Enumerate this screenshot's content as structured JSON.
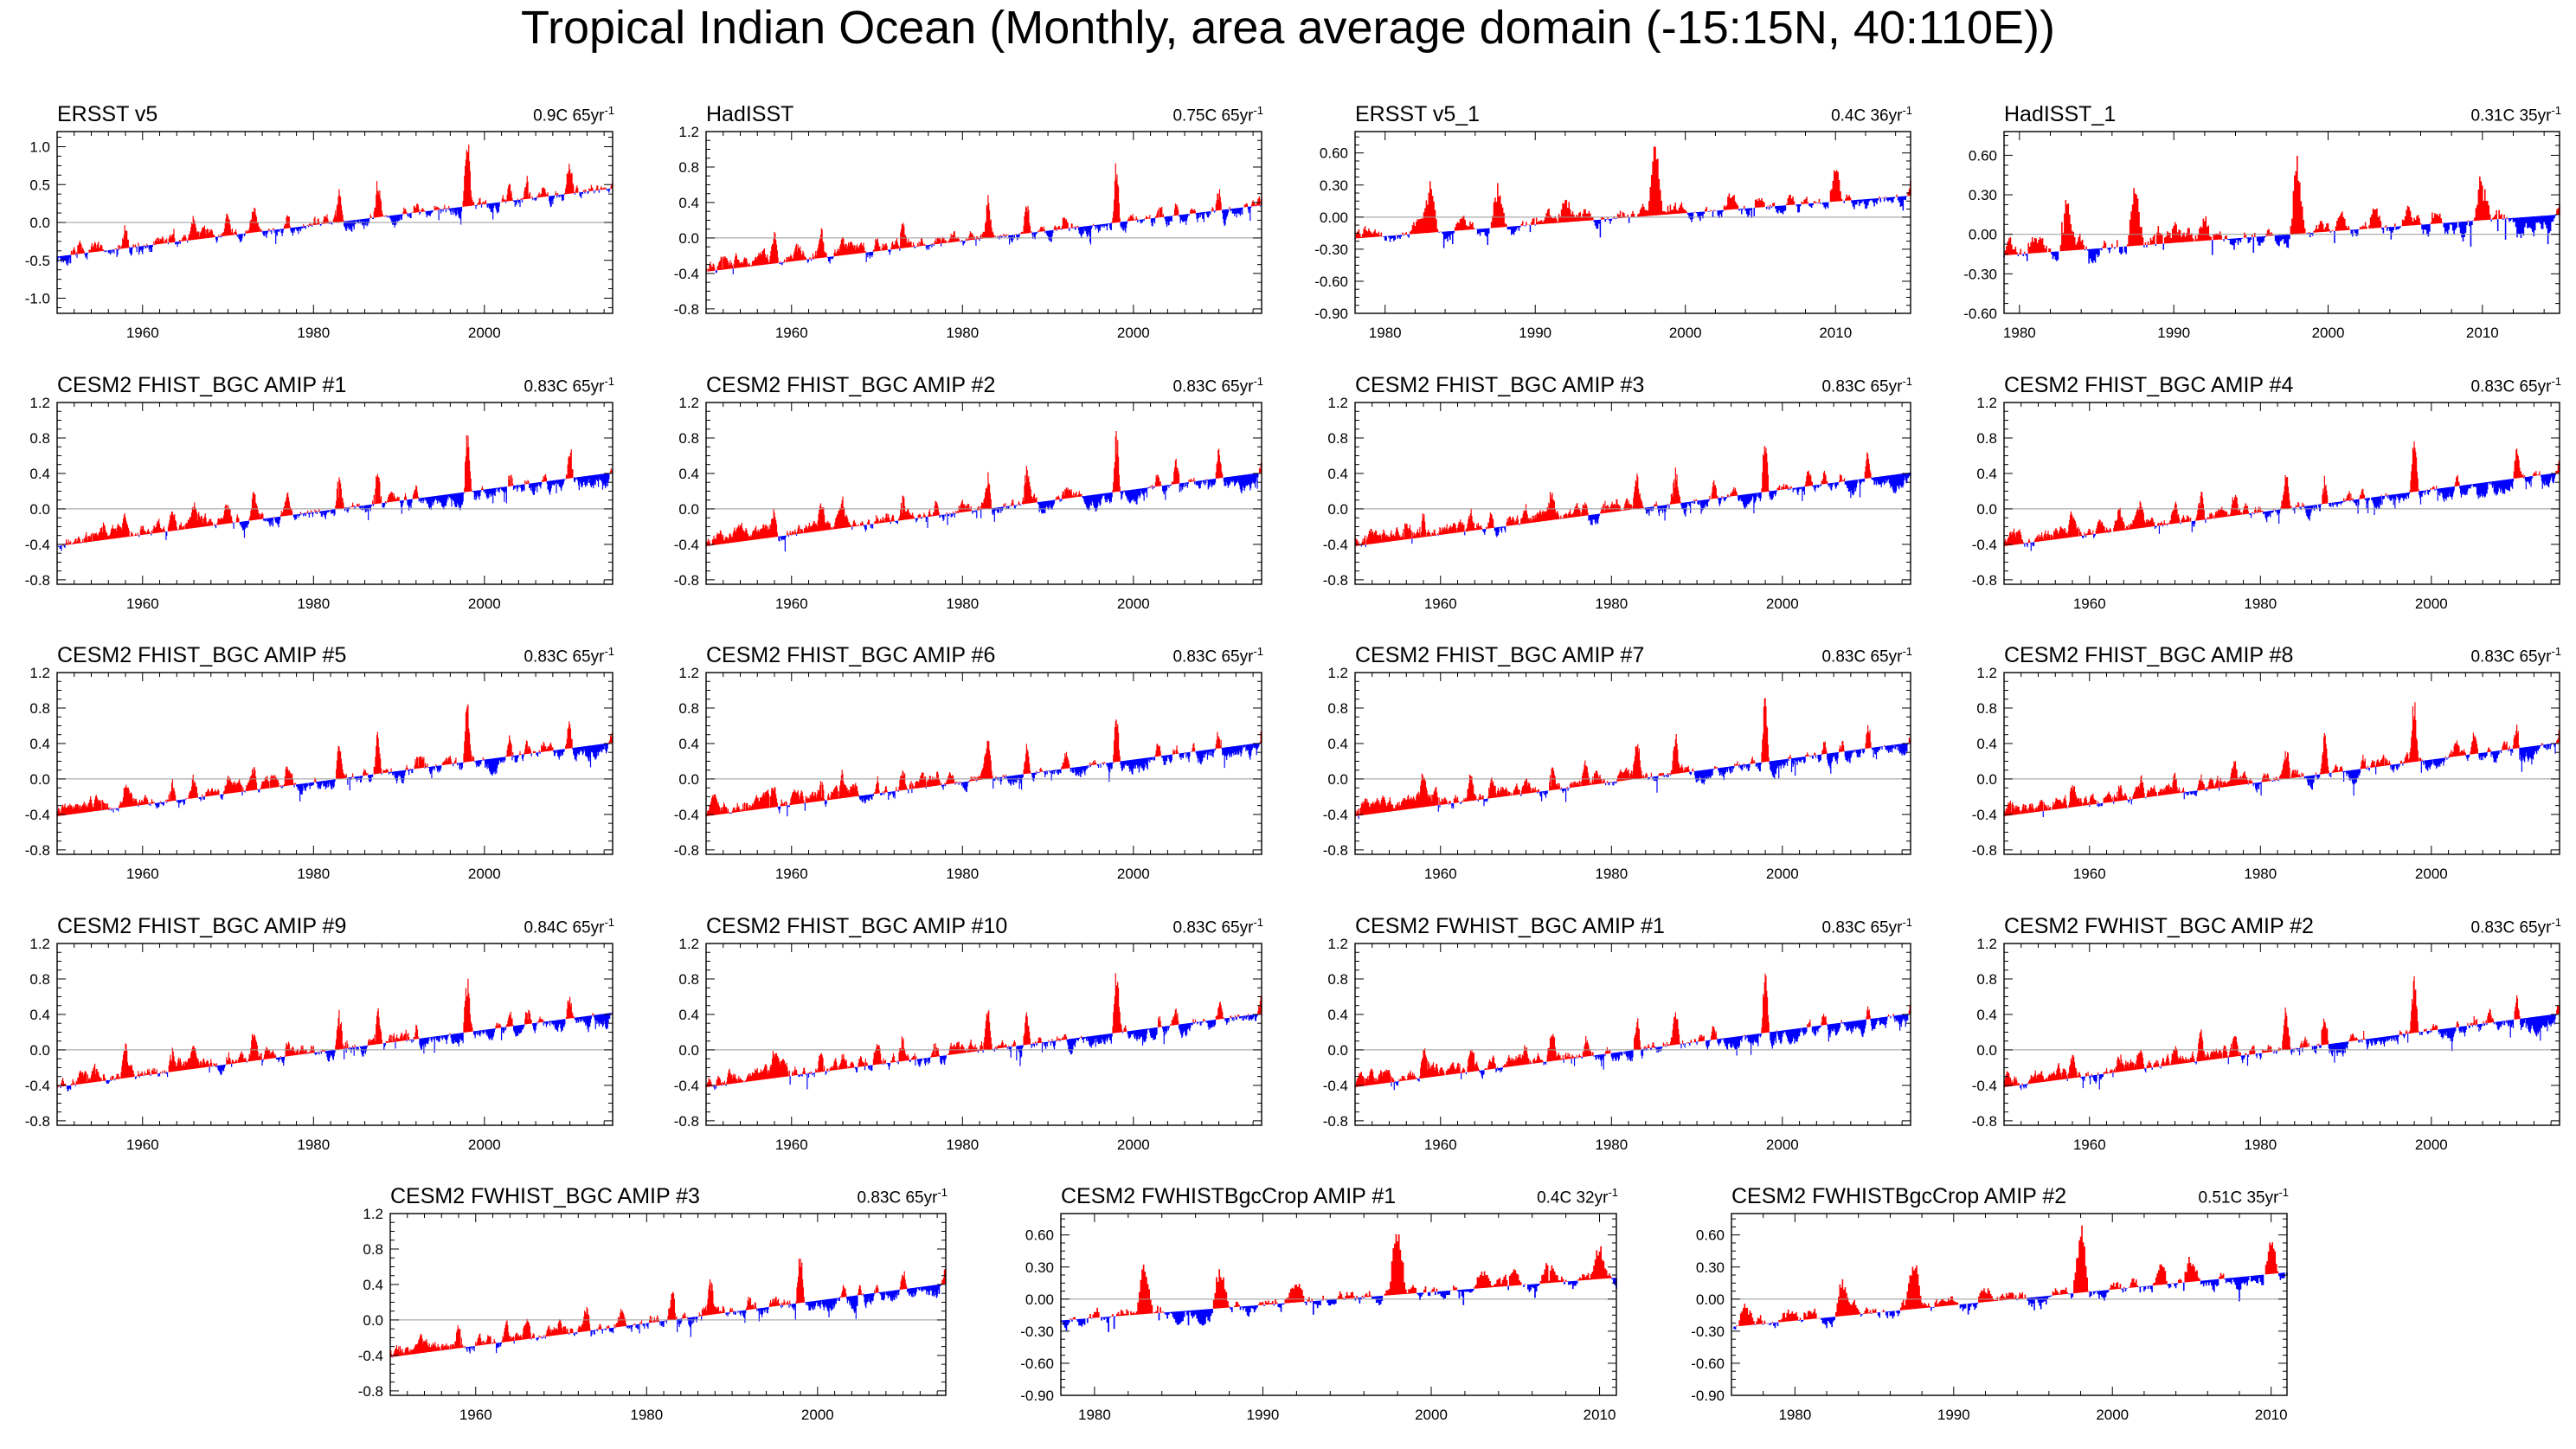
{
  "title": "Tropical Indian Ocean (Monthly, area average domain (-15:15N, 40:110E))",
  "colors": {
    "positive": "#ff0000",
    "negative": "#0000ff",
    "axis": "#000000",
    "zero_line": "#999999"
  },
  "chart_data": [
    {
      "type": "area",
      "title": "ERSST v5",
      "trend_value": "0.9C 65yr",
      "trend_unit_exp": "-1",
      "x_start": 1950,
      "x_end": 2015,
      "ylim": [
        -1.2,
        1.2
      ],
      "yticks": [
        -1.0,
        -0.5,
        0.0,
        0.5,
        1.0
      ],
      "ytick_labels": [
        "-1.0",
        "-0.5",
        "0.0",
        "0.5",
        "1.0"
      ],
      "xticks": [
        1960,
        1980,
        2000
      ],
      "xtick_labels": [
        "1960",
        "1980",
        "2000"
      ],
      "trend_line": [
        -0.45,
        0.45
      ],
      "seed": 11
    },
    {
      "type": "area",
      "title": "HadISST",
      "trend_value": "0.75C 65yr",
      "trend_unit_exp": "-1",
      "x_start": 1950,
      "x_end": 2015,
      "ylim": [
        -0.85,
        1.2
      ],
      "yticks": [
        -0.8,
        -0.4,
        0.0,
        0.4,
        0.8,
        1.2
      ],
      "ytick_labels": [
        "-0.8",
        "-0.4",
        "0.0",
        "0.4",
        "0.8",
        "1.2"
      ],
      "xticks": [
        1960,
        1980,
        2000
      ],
      "xtick_labels": [
        "1960",
        "1980",
        "2000"
      ],
      "trend_line": [
        -0.38,
        0.37
      ],
      "seed": 23
    },
    {
      "type": "area",
      "title": "ERSST v5_1",
      "trend_value": "0.4C 36yr",
      "trend_unit_exp": "-1",
      "x_start": 1978,
      "x_end": 2015,
      "ylim": [
        -0.9,
        0.8
      ],
      "yticks": [
        -0.9,
        -0.6,
        -0.3,
        0.0,
        0.3,
        0.6
      ],
      "ytick_labels": [
        "-0.90",
        "-0.60",
        "-0.30",
        "0.00",
        "0.30",
        "0.60"
      ],
      "xticks": [
        1980,
        1990,
        2000,
        2010
      ],
      "xtick_labels": [
        "1980",
        "1990",
        "2000",
        "2010"
      ],
      "trend_line": [
        -0.2,
        0.2
      ],
      "seed": 37
    },
    {
      "type": "area",
      "title": "HadISST_1",
      "trend_value": "0.31C 35yr",
      "trend_unit_exp": "-1",
      "x_start": 1979,
      "x_end": 2015,
      "ylim": [
        -0.6,
        0.78
      ],
      "yticks": [
        -0.6,
        -0.3,
        0.0,
        0.3,
        0.6
      ],
      "ytick_labels": [
        "-0.60",
        "-0.30",
        "0.00",
        "0.30",
        "0.60"
      ],
      "xticks": [
        1980,
        1990,
        2000,
        2010
      ],
      "xtick_labels": [
        "1980",
        "1990",
        "2000",
        "2010"
      ],
      "trend_line": [
        -0.16,
        0.15
      ],
      "seed": 41
    },
    {
      "type": "area",
      "title": "CESM2 FHIST_BGC AMIP #1",
      "trend_value": "0.83C 65yr",
      "trend_unit_exp": "-1",
      "x_start": 1950,
      "x_end": 2015,
      "ylim": [
        -0.85,
        1.2
      ],
      "yticks": [
        -0.8,
        -0.4,
        0.0,
        0.4,
        0.8,
        1.2
      ],
      "ytick_labels": [
        "-0.8",
        "-0.4",
        "0.0",
        "0.4",
        "0.8",
        "1.2"
      ],
      "xticks": [
        1960,
        1980,
        2000
      ],
      "xtick_labels": [
        "1960",
        "1980",
        "2000"
      ],
      "trend_line": [
        -0.42,
        0.41
      ],
      "seed": 53
    },
    {
      "type": "area",
      "title": "CESM2 FHIST_BGC AMIP #2",
      "trend_value": "0.83C 65yr",
      "trend_unit_exp": "-1",
      "x_start": 1950,
      "x_end": 2015,
      "ylim": [
        -0.85,
        1.2
      ],
      "yticks": [
        -0.8,
        -0.4,
        0.0,
        0.4,
        0.8,
        1.2
      ],
      "ytick_labels": [
        "-0.8",
        "-0.4",
        "0.0",
        "0.4",
        "0.8",
        "1.2"
      ],
      "xticks": [
        1960,
        1980,
        2000
      ],
      "xtick_labels": [
        "1960",
        "1980",
        "2000"
      ],
      "trend_line": [
        -0.42,
        0.41
      ],
      "seed": 59
    },
    {
      "type": "area",
      "title": "CESM2 FHIST_BGC AMIP #3",
      "trend_value": "0.83C 65yr",
      "trend_unit_exp": "-1",
      "x_start": 1950,
      "x_end": 2015,
      "ylim": [
        -0.85,
        1.2
      ],
      "yticks": [
        -0.8,
        -0.4,
        0.0,
        0.4,
        0.8,
        1.2
      ],
      "ytick_labels": [
        "-0.8",
        "-0.4",
        "0.0",
        "0.4",
        "0.8",
        "1.2"
      ],
      "xticks": [
        1960,
        1980,
        2000
      ],
      "xtick_labels": [
        "1960",
        "1980",
        "2000"
      ],
      "trend_line": [
        -0.42,
        0.41
      ],
      "seed": 61
    },
    {
      "type": "area",
      "title": "CESM2 FHIST_BGC AMIP #4",
      "trend_value": "0.83C 65yr",
      "trend_unit_exp": "-1",
      "x_start": 1950,
      "x_end": 2015,
      "ylim": [
        -0.85,
        1.2
      ],
      "yticks": [
        -0.8,
        -0.4,
        0.0,
        0.4,
        0.8,
        1.2
      ],
      "ytick_labels": [
        "-0.8",
        "-0.4",
        "0.0",
        "0.4",
        "0.8",
        "1.2"
      ],
      "xticks": [
        1960,
        1980,
        2000
      ],
      "xtick_labels": [
        "1960",
        "1980",
        "2000"
      ],
      "trend_line": [
        -0.42,
        0.41
      ],
      "seed": 67
    },
    {
      "type": "area",
      "title": "CESM2 FHIST_BGC AMIP #5",
      "trend_value": "0.83C 65yr",
      "trend_unit_exp": "-1",
      "x_start": 1950,
      "x_end": 2015,
      "ylim": [
        -0.85,
        1.2
      ],
      "yticks": [
        -0.8,
        -0.4,
        0.0,
        0.4,
        0.8,
        1.2
      ],
      "ytick_labels": [
        "-0.8",
        "-0.4",
        "0.0",
        "0.4",
        "0.8",
        "1.2"
      ],
      "xticks": [
        1960,
        1980,
        2000
      ],
      "xtick_labels": [
        "1960",
        "1980",
        "2000"
      ],
      "trend_line": [
        -0.42,
        0.41
      ],
      "seed": 71
    },
    {
      "type": "area",
      "title": "CESM2 FHIST_BGC AMIP #6",
      "trend_value": "0.83C 65yr",
      "trend_unit_exp": "-1",
      "x_start": 1950,
      "x_end": 2015,
      "ylim": [
        -0.85,
        1.2
      ],
      "yticks": [
        -0.8,
        -0.4,
        0.0,
        0.4,
        0.8,
        1.2
      ],
      "ytick_labels": [
        "-0.8",
        "-0.4",
        "0.0",
        "0.4",
        "0.8",
        "1.2"
      ],
      "xticks": [
        1960,
        1980,
        2000
      ],
      "xtick_labels": [
        "1960",
        "1980",
        "2000"
      ],
      "trend_line": [
        -0.42,
        0.41
      ],
      "seed": 73
    },
    {
      "type": "area",
      "title": "CESM2 FHIST_BGC AMIP #7",
      "trend_value": "0.83C 65yr",
      "trend_unit_exp": "-1",
      "x_start": 1950,
      "x_end": 2015,
      "ylim": [
        -0.85,
        1.2
      ],
      "yticks": [
        -0.8,
        -0.4,
        0.0,
        0.4,
        0.8,
        1.2
      ],
      "ytick_labels": [
        "-0.8",
        "-0.4",
        "0.0",
        "0.4",
        "0.8",
        "1.2"
      ],
      "xticks": [
        1960,
        1980,
        2000
      ],
      "xtick_labels": [
        "1960",
        "1980",
        "2000"
      ],
      "trend_line": [
        -0.42,
        0.41
      ],
      "seed": 79
    },
    {
      "type": "area",
      "title": "CESM2 FHIST_BGC AMIP #8",
      "trend_value": "0.83C 65yr",
      "trend_unit_exp": "-1",
      "x_start": 1950,
      "x_end": 2015,
      "ylim": [
        -0.85,
        1.2
      ],
      "yticks": [
        -0.8,
        -0.4,
        0.0,
        0.4,
        0.8,
        1.2
      ],
      "ytick_labels": [
        "-0.8",
        "-0.4",
        "0.0",
        "0.4",
        "0.8",
        "1.2"
      ],
      "xticks": [
        1960,
        1980,
        2000
      ],
      "xtick_labels": [
        "1960",
        "1980",
        "2000"
      ],
      "trend_line": [
        -0.42,
        0.41
      ],
      "seed": 83
    },
    {
      "type": "area",
      "title": "CESM2 FHIST_BGC AMIP #9",
      "trend_value": "0.84C 65yr",
      "trend_unit_exp": "-1",
      "x_start": 1950,
      "x_end": 2015,
      "ylim": [
        -0.85,
        1.2
      ],
      "yticks": [
        -0.8,
        -0.4,
        0.0,
        0.4,
        0.8,
        1.2
      ],
      "ytick_labels": [
        "-0.8",
        "-0.4",
        "0.0",
        "0.4",
        "0.8",
        "1.2"
      ],
      "xticks": [
        1960,
        1980,
        2000
      ],
      "xtick_labels": [
        "1960",
        "1980",
        "2000"
      ],
      "trend_line": [
        -0.42,
        0.42
      ],
      "seed": 89
    },
    {
      "type": "area",
      "title": "CESM2 FHIST_BGC AMIP #10",
      "trend_value": "0.83C 65yr",
      "trend_unit_exp": "-1",
      "x_start": 1950,
      "x_end": 2015,
      "ylim": [
        -0.85,
        1.2
      ],
      "yticks": [
        -0.8,
        -0.4,
        0.0,
        0.4,
        0.8,
        1.2
      ],
      "ytick_labels": [
        "-0.8",
        "-0.4",
        "0.0",
        "0.4",
        "0.8",
        "1.2"
      ],
      "xticks": [
        1960,
        1980,
        2000
      ],
      "xtick_labels": [
        "1960",
        "1980",
        "2000"
      ],
      "trend_line": [
        -0.42,
        0.41
      ],
      "seed": 97
    },
    {
      "type": "area",
      "title": "CESM2 FWHIST_BGC AMIP #1",
      "trend_value": "0.83C 65yr",
      "trend_unit_exp": "-1",
      "x_start": 1950,
      "x_end": 2015,
      "ylim": [
        -0.85,
        1.2
      ],
      "yticks": [
        -0.8,
        -0.4,
        0.0,
        0.4,
        0.8,
        1.2
      ],
      "ytick_labels": [
        "-0.8",
        "-0.4",
        "0.0",
        "0.4",
        "0.8",
        "1.2"
      ],
      "xticks": [
        1960,
        1980,
        2000
      ],
      "xtick_labels": [
        "1960",
        "1980",
        "2000"
      ],
      "trend_line": [
        -0.42,
        0.41
      ],
      "seed": 101
    },
    {
      "type": "area",
      "title": "CESM2 FWHIST_BGC AMIP #2",
      "trend_value": "0.83C 65yr",
      "trend_unit_exp": "-1",
      "x_start": 1950,
      "x_end": 2015,
      "ylim": [
        -0.85,
        1.2
      ],
      "yticks": [
        -0.8,
        -0.4,
        0.0,
        0.4,
        0.8,
        1.2
      ],
      "ytick_labels": [
        "-0.8",
        "-0.4",
        "0.0",
        "0.4",
        "0.8",
        "1.2"
      ],
      "xticks": [
        1960,
        1980,
        2000
      ],
      "xtick_labels": [
        "1960",
        "1980",
        "2000"
      ],
      "trend_line": [
        -0.42,
        0.41
      ],
      "seed": 103
    },
    {
      "type": "area",
      "title": "CESM2 FWHIST_BGC AMIP #3",
      "trend_value": "0.83C 65yr",
      "trend_unit_exp": "-1",
      "x_start": 1950,
      "x_end": 2015,
      "ylim": [
        -0.85,
        1.2
      ],
      "yticks": [
        -0.8,
        -0.4,
        0.0,
        0.4,
        0.8,
        1.2
      ],
      "ytick_labels": [
        "-0.8",
        "-0.4",
        "0.0",
        "0.4",
        "0.8",
        "1.2"
      ],
      "xticks": [
        1960,
        1980,
        2000
      ],
      "xtick_labels": [
        "1960",
        "1980",
        "2000"
      ],
      "trend_line": [
        -0.42,
        0.41
      ],
      "seed": 107
    },
    {
      "type": "area",
      "title": "CESM2 FWHISTBgcCrop AMIP #1",
      "trend_value": "0.4C 32yr",
      "trend_unit_exp": "-1",
      "x_start": 1978,
      "x_end": 2011,
      "ylim": [
        -0.9,
        0.8
      ],
      "yticks": [
        -0.9,
        -0.6,
        -0.3,
        0.0,
        0.3,
        0.6
      ],
      "ytick_labels": [
        "-0.90",
        "-0.60",
        "-0.30",
        "0.00",
        "0.30",
        "0.60"
      ],
      "xticks": [
        1980,
        1990,
        2000,
        2010
      ],
      "xtick_labels": [
        "1980",
        "1990",
        "2000",
        "2010"
      ],
      "trend_line": [
        -0.2,
        0.2
      ],
      "seed": 109
    },
    {
      "type": "area",
      "title": "CESM2 FWHISTBgcCrop AMIP #2",
      "trend_value": "0.51C 35yr",
      "trend_unit_exp": "-1",
      "x_start": 1976,
      "x_end": 2011,
      "ylim": [
        -0.9,
        0.8
      ],
      "yticks": [
        -0.9,
        -0.6,
        -0.3,
        0.0,
        0.3,
        0.6
      ],
      "ytick_labels": [
        "-0.90",
        "-0.60",
        "-0.30",
        "0.00",
        "0.30",
        "0.60"
      ],
      "xticks": [
        1980,
        1990,
        2000,
        2010
      ],
      "xtick_labels": [
        "1980",
        "1990",
        "2000",
        "2010"
      ],
      "trend_line": [
        -0.26,
        0.25
      ],
      "seed": 113
    }
  ]
}
